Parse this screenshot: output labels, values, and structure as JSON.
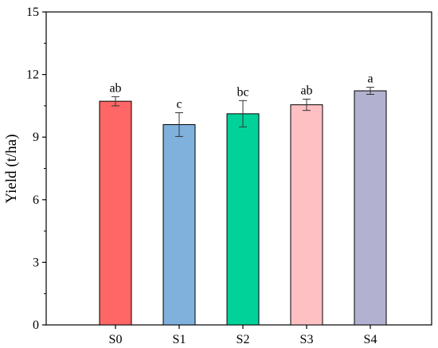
{
  "chart_data": {
    "type": "bar",
    "title": "",
    "xlabel": "",
    "ylabel": "Yield (t/ha)",
    "ylim": [
      0,
      15
    ],
    "yticks": [
      0,
      3,
      6,
      9,
      12,
      15
    ],
    "grid": false,
    "categories": [
      "S0",
      "S1",
      "S2",
      "S3",
      "S4"
    ],
    "values": [
      10.72,
      9.6,
      10.12,
      10.55,
      11.22
    ],
    "errors": [
      0.22,
      0.57,
      0.63,
      0.27,
      0.17
    ],
    "significance": [
      "ab",
      "c",
      "bc",
      "ab",
      "a"
    ],
    "colors": [
      "#ff6666",
      "#80b1dd",
      "#00d29a",
      "#ffc0c3",
      "#b2b1d0"
    ]
  }
}
